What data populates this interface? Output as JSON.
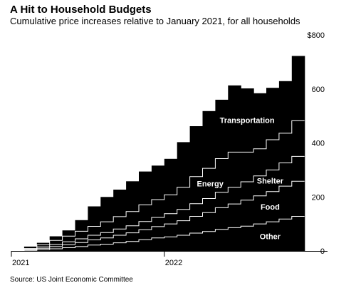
{
  "chart_data": {
    "type": "area",
    "title": "A Hit to Household Budgets",
    "subtitle": "Cumulative price increases relative to January 2021, for all households",
    "source": "Source: US Joint Economic Committee",
    "x": [
      "2021-01",
      "2021-02",
      "2021-03",
      "2021-04",
      "2021-05",
      "2021-06",
      "2021-07",
      "2021-08",
      "2021-09",
      "2021-10",
      "2021-11",
      "2021-12",
      "2022-01",
      "2022-02",
      "2022-03",
      "2022-04",
      "2022-05",
      "2022-06",
      "2022-07",
      "2022-08",
      "2022-09",
      "2022-10",
      "2022-11"
    ],
    "x_tick_labels": [
      "2021",
      "2022"
    ],
    "y_tick_labels": [
      "$800",
      "600",
      "400",
      "200",
      "0"
    ],
    "y_ticks": [
      800,
      600,
      400,
      200,
      0
    ],
    "ylim": [
      0,
      800
    ],
    "stacking": "cumulative",
    "series": [
      {
        "name": "Other",
        "values": [
          0,
          2,
          5,
          8,
          12,
          16,
          22,
          25,
          30,
          35,
          42,
          48,
          52,
          58,
          66,
          72,
          80,
          86,
          92,
          100,
          108,
          118,
          128
        ]
      },
      {
        "name": "Food",
        "values": [
          0,
          2,
          5,
          8,
          11,
          15,
          19,
          23,
          28,
          32,
          37,
          42,
          48,
          54,
          62,
          70,
          80,
          88,
          96,
          104,
          112,
          122,
          130
        ]
      },
      {
        "name": "Shelter",
        "values": [
          0,
          2,
          5,
          8,
          11,
          14,
          17,
          20,
          23,
          26,
          30,
          34,
          38,
          42,
          47,
          52,
          57,
          62,
          68,
          74,
          80,
          86,
          92
        ]
      },
      {
        "name": "Energy",
        "values": [
          0,
          3,
          8,
          15,
          21,
          28,
          33,
          40,
          46,
          53,
          62,
          66,
          70,
          82,
          100,
          112,
          125,
          130,
          110,
          100,
          112,
          110,
          132
        ]
      },
      {
        "name": "Transportation",
        "values": [
          0,
          7,
          7,
          15,
          21,
          41,
          74,
          92,
          100,
          112,
          123,
          126,
          133,
          167,
          187,
          212,
          218,
          247,
          236,
          206,
          192,
          193,
          240
        ]
      }
    ],
    "grid": false,
    "legend": "none (series labelled inside the areas)"
  }
}
